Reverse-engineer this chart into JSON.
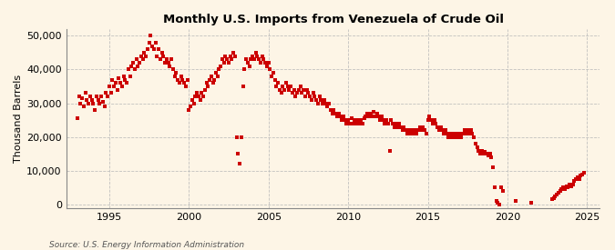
{
  "title": "Monthly U.S. Imports from Venezuela of Crude Oil",
  "ylabel": "Thousand Barrels",
  "source": "Source: U.S. Energy Information Administration",
  "marker_color": "#cc0000",
  "bg_color": "#fdf5e6",
  "plot_bg_color": "#fdf5e6",
  "grid_color": "#bbbbbb",
  "ylim": [
    -1000,
    52000
  ],
  "yticks": [
    0,
    10000,
    20000,
    30000,
    40000,
    50000
  ],
  "ytick_labels": [
    "0",
    "10,000",
    "20,000",
    "30,000",
    "40,000",
    "50,000"
  ],
  "xlim": [
    1992.3,
    2025.8
  ],
  "xticks": [
    1995,
    2000,
    2005,
    2010,
    2015,
    2020,
    2025
  ],
  "data": [
    [
      1993.0,
      25500
    ],
    [
      1993.1,
      32000
    ],
    [
      1993.2,
      30000
    ],
    [
      1993.3,
      31500
    ],
    [
      1993.4,
      29000
    ],
    [
      1993.5,
      33000
    ],
    [
      1993.6,
      31000
    ],
    [
      1993.7,
      30000
    ],
    [
      1993.8,
      32000
    ],
    [
      1993.9,
      31000
    ],
    [
      1994.0,
      30000
    ],
    [
      1994.1,
      28000
    ],
    [
      1994.2,
      32000
    ],
    [
      1994.3,
      31000
    ],
    [
      1994.4,
      30000
    ],
    [
      1994.5,
      32000
    ],
    [
      1994.6,
      30500
    ],
    [
      1994.7,
      29000
    ],
    [
      1994.8,
      33000
    ],
    [
      1994.9,
      32000
    ],
    [
      1995.0,
      35000
    ],
    [
      1995.1,
      33000
    ],
    [
      1995.2,
      37000
    ],
    [
      1995.3,
      35000
    ],
    [
      1995.4,
      36000
    ],
    [
      1995.5,
      34000
    ],
    [
      1995.6,
      37500
    ],
    [
      1995.7,
      36000
    ],
    [
      1995.8,
      35000
    ],
    [
      1995.9,
      38000
    ],
    [
      1996.0,
      37000
    ],
    [
      1996.1,
      36000
    ],
    [
      1996.2,
      40000
    ],
    [
      1996.3,
      38000
    ],
    [
      1996.4,
      41000
    ],
    [
      1996.5,
      42000
    ],
    [
      1996.6,
      40000
    ],
    [
      1996.7,
      43000
    ],
    [
      1996.8,
      41000
    ],
    [
      1996.9,
      42000
    ],
    [
      1997.0,
      44000
    ],
    [
      1997.1,
      43000
    ],
    [
      1997.2,
      45000
    ],
    [
      1997.3,
      44000
    ],
    [
      1997.4,
      46000
    ],
    [
      1997.5,
      48000
    ],
    [
      1997.6,
      50000
    ],
    [
      1997.7,
      47000
    ],
    [
      1997.8,
      46000
    ],
    [
      1997.9,
      48000
    ],
    [
      1998.0,
      44000
    ],
    [
      1998.1,
      46000
    ],
    [
      1998.2,
      43000
    ],
    [
      1998.3,
      45000
    ],
    [
      1998.4,
      44000
    ],
    [
      1998.5,
      42000
    ],
    [
      1998.6,
      43000
    ],
    [
      1998.7,
      42000
    ],
    [
      1998.8,
      41000
    ],
    [
      1998.9,
      43000
    ],
    [
      1999.0,
      40000
    ],
    [
      1999.1,
      38000
    ],
    [
      1999.2,
      39000
    ],
    [
      1999.3,
      37000
    ],
    [
      1999.4,
      36000
    ],
    [
      1999.5,
      38000
    ],
    [
      1999.6,
      37000
    ],
    [
      1999.7,
      36000
    ],
    [
      1999.8,
      35000
    ],
    [
      1999.9,
      37000
    ],
    [
      2000.0,
      28000
    ],
    [
      2000.1,
      29000
    ],
    [
      2000.2,
      31000
    ],
    [
      2000.3,
      30000
    ],
    [
      2000.4,
      32000
    ],
    [
      2000.5,
      33000
    ],
    [
      2000.6,
      32000
    ],
    [
      2000.7,
      31000
    ],
    [
      2000.8,
      33000
    ],
    [
      2000.9,
      32000
    ],
    [
      2001.0,
      34000
    ],
    [
      2001.1,
      36000
    ],
    [
      2001.2,
      35000
    ],
    [
      2001.3,
      37000
    ],
    [
      2001.4,
      38000
    ],
    [
      2001.5,
      36000
    ],
    [
      2001.6,
      37000
    ],
    [
      2001.7,
      39000
    ],
    [
      2001.8,
      38000
    ],
    [
      2001.9,
      40000
    ],
    [
      2002.0,
      41000
    ],
    [
      2002.1,
      43000
    ],
    [
      2002.2,
      42000
    ],
    [
      2002.3,
      44000
    ],
    [
      2002.4,
      43000
    ],
    [
      2002.5,
      42000
    ],
    [
      2002.6,
      44000
    ],
    [
      2002.7,
      43000
    ],
    [
      2002.8,
      45000
    ],
    [
      2002.9,
      44000
    ],
    [
      2003.0,
      20000
    ],
    [
      2003.1,
      15000
    ],
    [
      2003.2,
      12000
    ],
    [
      2003.3,
      20000
    ],
    [
      2003.4,
      35000
    ],
    [
      2003.5,
      40000
    ],
    [
      2003.6,
      43000
    ],
    [
      2003.7,
      42000
    ],
    [
      2003.8,
      41000
    ],
    [
      2003.9,
      43000
    ],
    [
      2004.0,
      44000
    ],
    [
      2004.1,
      43000
    ],
    [
      2004.2,
      45000
    ],
    [
      2004.3,
      44000
    ],
    [
      2004.4,
      43000
    ],
    [
      2004.5,
      42000
    ],
    [
      2004.6,
      44000
    ],
    [
      2004.7,
      43000
    ],
    [
      2004.8,
      42000
    ],
    [
      2004.9,
      41000
    ],
    [
      2005.0,
      42000
    ],
    [
      2005.1,
      40000
    ],
    [
      2005.2,
      38000
    ],
    [
      2005.3,
      39000
    ],
    [
      2005.4,
      37000
    ],
    [
      2005.5,
      35000
    ],
    [
      2005.6,
      36000
    ],
    [
      2005.7,
      34000
    ],
    [
      2005.8,
      33000
    ],
    [
      2005.9,
      35000
    ],
    [
      2006.0,
      34000
    ],
    [
      2006.1,
      36000
    ],
    [
      2006.2,
      35000
    ],
    [
      2006.3,
      34000
    ],
    [
      2006.4,
      35000
    ],
    [
      2006.5,
      33000
    ],
    [
      2006.6,
      34000
    ],
    [
      2006.7,
      32000
    ],
    [
      2006.8,
      33000
    ],
    [
      2006.9,
      34000
    ],
    [
      2007.0,
      35000
    ],
    [
      2007.1,
      33000
    ],
    [
      2007.2,
      34000
    ],
    [
      2007.3,
      32000
    ],
    [
      2007.4,
      34000
    ],
    [
      2007.5,
      33000
    ],
    [
      2007.6,
      32000
    ],
    [
      2007.7,
      31000
    ],
    [
      2007.8,
      33000
    ],
    [
      2007.9,
      32000
    ],
    [
      2008.0,
      31000
    ],
    [
      2008.1,
      30000
    ],
    [
      2008.2,
      32000
    ],
    [
      2008.3,
      31000
    ],
    [
      2008.4,
      30000
    ],
    [
      2008.5,
      31000
    ],
    [
      2008.6,
      30000
    ],
    [
      2008.7,
      29000
    ],
    [
      2008.8,
      30000
    ],
    [
      2008.9,
      28000
    ],
    [
      2009.0,
      27000
    ],
    [
      2009.1,
      28000
    ],
    [
      2009.2,
      27000
    ],
    [
      2009.3,
      26000
    ],
    [
      2009.4,
      27000
    ],
    [
      2009.5,
      26000
    ],
    [
      2009.6,
      25000
    ],
    [
      2009.7,
      26000
    ],
    [
      2009.8,
      25000
    ],
    [
      2009.9,
      24000
    ],
    [
      2010.0,
      25000
    ],
    [
      2010.1,
      24000
    ],
    [
      2010.2,
      25500
    ],
    [
      2010.3,
      24000
    ],
    [
      2010.4,
      25000
    ],
    [
      2010.5,
      24000
    ],
    [
      2010.6,
      25000
    ],
    [
      2010.7,
      24000
    ],
    [
      2010.8,
      25000
    ],
    [
      2010.9,
      24000
    ],
    [
      2011.0,
      25500
    ],
    [
      2011.1,
      26000
    ],
    [
      2011.2,
      27000
    ],
    [
      2011.3,
      26000
    ],
    [
      2011.4,
      27000
    ],
    [
      2011.5,
      26000
    ],
    [
      2011.6,
      27500
    ],
    [
      2011.7,
      26000
    ],
    [
      2011.8,
      27000
    ],
    [
      2011.9,
      26000
    ],
    [
      2012.0,
      25000
    ],
    [
      2012.1,
      26000
    ],
    [
      2012.2,
      25000
    ],
    [
      2012.3,
      24000
    ],
    [
      2012.4,
      25000
    ],
    [
      2012.5,
      24000
    ],
    [
      2012.6,
      16000
    ],
    [
      2012.7,
      25000
    ],
    [
      2012.8,
      24000
    ],
    [
      2012.9,
      23000
    ],
    [
      2013.0,
      24000
    ],
    [
      2013.1,
      23000
    ],
    [
      2013.2,
      24000
    ],
    [
      2013.3,
      23000
    ],
    [
      2013.4,
      22000
    ],
    [
      2013.5,
      23000
    ],
    [
      2013.6,
      22000
    ],
    [
      2013.7,
      21000
    ],
    [
      2013.8,
      22000
    ],
    [
      2013.9,
      21000
    ],
    [
      2014.0,
      22000
    ],
    [
      2014.1,
      21000
    ],
    [
      2014.2,
      22000
    ],
    [
      2014.3,
      21000
    ],
    [
      2014.4,
      22000
    ],
    [
      2014.5,
      23000
    ],
    [
      2014.6,
      22000
    ],
    [
      2014.7,
      23000
    ],
    [
      2014.8,
      22000
    ],
    [
      2014.9,
      21000
    ],
    [
      2015.0,
      25000
    ],
    [
      2015.1,
      26000
    ],
    [
      2015.2,
      25000
    ],
    [
      2015.3,
      24000
    ],
    [
      2015.4,
      25000
    ],
    [
      2015.5,
      24000
    ],
    [
      2015.6,
      23000
    ],
    [
      2015.7,
      22000
    ],
    [
      2015.8,
      23000
    ],
    [
      2015.9,
      22000
    ],
    [
      2016.0,
      21000
    ],
    [
      2016.1,
      22000
    ],
    [
      2016.2,
      21000
    ],
    [
      2016.3,
      20000
    ],
    [
      2016.4,
      21000
    ],
    [
      2016.5,
      20000
    ],
    [
      2016.6,
      21000
    ],
    [
      2016.7,
      20000
    ],
    [
      2016.8,
      21000
    ],
    [
      2016.9,
      20000
    ],
    [
      2017.0,
      21000
    ],
    [
      2017.1,
      20000
    ],
    [
      2017.2,
      21000
    ],
    [
      2017.3,
      22000
    ],
    [
      2017.4,
      21000
    ],
    [
      2017.5,
      22000
    ],
    [
      2017.6,
      21000
    ],
    [
      2017.7,
      22000
    ],
    [
      2017.8,
      21000
    ],
    [
      2017.9,
      20000
    ],
    [
      2018.0,
      18000
    ],
    [
      2018.1,
      17000
    ],
    [
      2018.2,
      16000
    ],
    [
      2018.3,
      15000
    ],
    [
      2018.4,
      16000
    ],
    [
      2018.5,
      15000
    ],
    [
      2018.6,
      15500
    ],
    [
      2018.7,
      15000
    ],
    [
      2018.8,
      14500
    ],
    [
      2018.9,
      15000
    ],
    [
      2019.0,
      14000
    ],
    [
      2019.1,
      11000
    ],
    [
      2019.2,
      5000
    ],
    [
      2019.3,
      1000
    ],
    [
      2019.4,
      500
    ],
    [
      2019.5,
      0
    ],
    [
      2019.6,
      5000
    ],
    [
      2019.7,
      4000
    ],
    [
      2020.5,
      1000
    ],
    [
      2021.5,
      500
    ],
    [
      2022.8,
      1500
    ],
    [
      2022.9,
      2000
    ],
    [
      2023.0,
      2500
    ],
    [
      2023.1,
      3000
    ],
    [
      2023.2,
      3500
    ],
    [
      2023.3,
      4000
    ],
    [
      2023.4,
      4500
    ],
    [
      2023.5,
      5000
    ],
    [
      2023.6,
      4500
    ],
    [
      2023.7,
      5500
    ],
    [
      2023.8,
      5000
    ],
    [
      2023.9,
      6000
    ],
    [
      2024.0,
      5500
    ],
    [
      2024.1,
      6000
    ],
    [
      2024.2,
      7000
    ],
    [
      2024.3,
      7500
    ],
    [
      2024.4,
      8000
    ],
    [
      2024.5,
      7500
    ],
    [
      2024.6,
      8500
    ],
    [
      2024.7,
      9000
    ],
    [
      2024.8,
      9500
    ]
  ]
}
